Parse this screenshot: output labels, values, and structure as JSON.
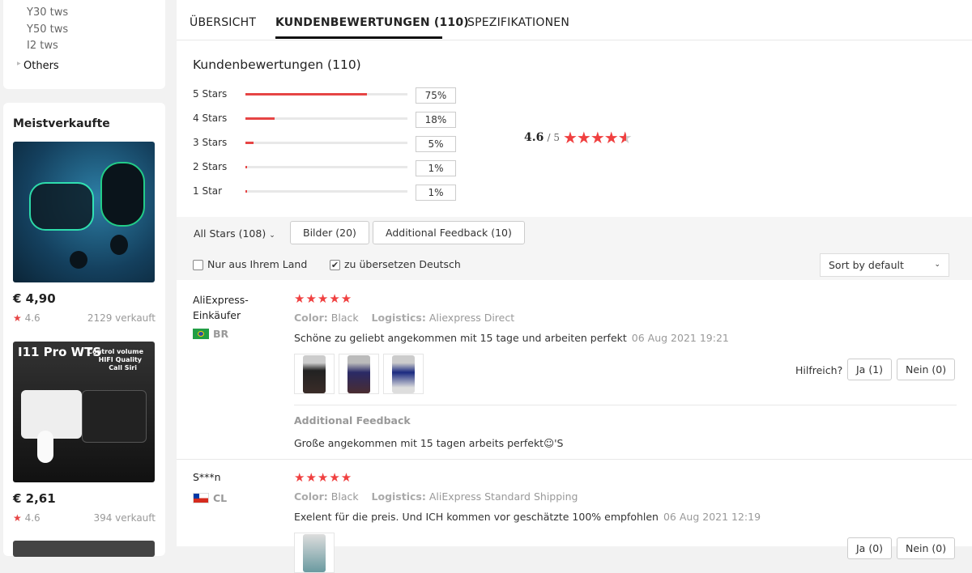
{
  "sidebar": {
    "categories": [
      "Y30 tws",
      "Y50 tws",
      "I2 tws"
    ],
    "others": "Others",
    "bestsellers_title": "Meistverkaufte",
    "products": [
      {
        "price": "€ 4,90",
        "rating": "4.6",
        "sold": "2129 verkauft"
      },
      {
        "price": "€ 2,61",
        "rating": "4.6",
        "sold": "394 verkauft",
        "image_text": [
          "I11 Pro WTS",
          "Control volume",
          "HIFI Quality",
          "Call Siri"
        ]
      }
    ]
  },
  "tabs": [
    {
      "label": "ÜBERSICHT"
    },
    {
      "label": "KUNDENBEWERTUNGEN (110)",
      "active": true
    },
    {
      "label": "SPEZIFIKATIONEN"
    }
  ],
  "summary": {
    "title": "Kundenbewertungen (110)",
    "bars": [
      {
        "label": "5 Stars",
        "pct": "75%",
        "value": 75
      },
      {
        "label": "4 Stars",
        "pct": "18%",
        "value": 18
      },
      {
        "label": "3 Stars",
        "pct": "5%",
        "value": 5
      },
      {
        "label": "2 Stars",
        "pct": "1%",
        "value": 1
      },
      {
        "label": "1 Star",
        "pct": "1%",
        "value": 1
      }
    ],
    "average": "4.6",
    "out_of": "/ 5",
    "star_rating": 4.6
  },
  "filters": {
    "all_stars": "All Stars (108)",
    "pictures": "Bilder (20)",
    "additional": "Additional Feedback (10)",
    "only_country": "Nur aus Ihrem Land",
    "only_country_checked": false,
    "translate": "zu übersetzen Deutsch",
    "translate_checked": true,
    "sort": "Sort by default"
  },
  "reviews": [
    {
      "name": "AliExpress-Einkäufer",
      "country": "BR",
      "stars": 5,
      "color_label": "Color:",
      "color": "Black",
      "logistics_label": "Logistics:",
      "logistics": "Aliexpress Direct",
      "text": "Schöne zu geliebt angekommen mit 15 tage und arbeiten perfekt",
      "date": "06 Aug 2021 19:21",
      "helpful": "Hilfreich?",
      "yes": "Ja (1)",
      "no": "Nein (0)",
      "additional_title": "Additional Feedback",
      "additional_text": "Große angekommen mit 15 tagen arbeits perfekt☺'S"
    },
    {
      "name": "S***n",
      "country": "CL",
      "stars": 5,
      "color_label": "Color:",
      "color": "Black",
      "logistics_label": "Logistics:",
      "logistics": "AliExpress Standard Shipping",
      "text": "Exelent für die preis. Und ICH kommen vor geschätzte 100% empfohlen",
      "date": "06 Aug 2021 12:19",
      "yes": "Ja (0)",
      "no": "Nein (0)"
    }
  ],
  "colors": {
    "accent": "#e64545",
    "star": "#f04040"
  }
}
